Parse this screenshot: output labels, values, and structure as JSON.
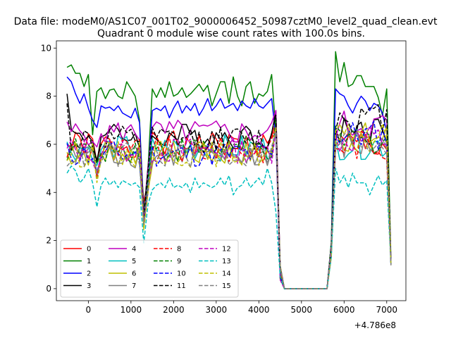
{
  "figure": {
    "suptitle": "Data file: modeM0/AS1C07_001T02_9000006452_50987cztM0_level2_quad_clean.evt"
  },
  "chart_data": {
    "type": "line",
    "title": "Quadrant 0 module wise count rates with 100.0s bins.",
    "xlabel": "",
    "ylabel": "",
    "x_offset_label": "+4.786e8",
    "xlim": [
      -750,
      7450
    ],
    "ylim": [
      -0.5,
      10.3
    ],
    "xticks": [
      0,
      1000,
      2000,
      3000,
      4000,
      5000,
      6000,
      7000
    ],
    "xtick_labels": [
      "0",
      "1000",
      "2000",
      "3000",
      "4000",
      "5000",
      "6000",
      "7000"
    ],
    "yticks": [
      0,
      2,
      4,
      6,
      8,
      10
    ],
    "ytick_labels": [
      "0",
      "2",
      "4",
      "6",
      "8",
      "10"
    ],
    "grid": false,
    "legend_position": "lower-left",
    "legend_columns": 4,
    "x": [
      -500,
      -400,
      -300,
      -200,
      -100,
      0,
      100,
      200,
      300,
      400,
      500,
      600,
      700,
      800,
      900,
      1000,
      1100,
      1200,
      1300,
      1400,
      1500,
      1600,
      1700,
      1800,
      1900,
      2000,
      2100,
      2200,
      2300,
      2400,
      2500,
      2600,
      2700,
      2800,
      2900,
      3000,
      3100,
      3200,
      3300,
      3400,
      3500,
      3600,
      3700,
      3800,
      3900,
      4000,
      4100,
      4200,
      4300,
      4400,
      4500,
      4600,
      4700,
      4800,
      4900,
      5000,
      5100,
      5200,
      5300,
      5400,
      5500,
      5600,
      5700,
      5800,
      5900,
      6000,
      6100,
      6200,
      6300,
      6400,
      6500,
      6600,
      6700,
      6800,
      6900,
      7000,
      7100
    ],
    "series": [
      {
        "name": "0",
        "color": "#ff0000",
        "dash": "solid",
        "base": 6.0,
        "gap": 3.4,
        "mid": 6.0,
        "seed": 1
      },
      {
        "name": "1",
        "color": "#008000",
        "dash": "solid",
        "base": 8.35,
        "gap": 3.2,
        "mid": 8.5,
        "seed": 2,
        "values": [
          9.2,
          9.3,
          8.95,
          8.95,
          8.4,
          8.9,
          6.4,
          8.2,
          8.35,
          7.9,
          8.25,
          8.3,
          8.0,
          7.9,
          8.6,
          8.3,
          8.0,
          7.0,
          3.2,
          5.0,
          8.3,
          7.95,
          8.35,
          7.95,
          8.6,
          8.0,
          8.1,
          8.35,
          7.95,
          8.1,
          8.3,
          8.5,
          8.2,
          8.45,
          7.6,
          8.1,
          8.6,
          8.6,
          7.7,
          8.8,
          8.0,
          7.6,
          8.4,
          8.6,
          7.7,
          8.1,
          8.0,
          8.2,
          8.9,
          6.5,
          0.9,
          0.0,
          0.0,
          0.0,
          0.0,
          0.0,
          0.0,
          0.0,
          0.0,
          0.0,
          0.0,
          0.0,
          1.9,
          9.85,
          8.6,
          9.4,
          8.4,
          8.5,
          8.85,
          8.85,
          8.4,
          8.4,
          8.4,
          7.95,
          7.2,
          8.3,
          1.2
        ]
      },
      {
        "name": "2",
        "color": "#0000ff",
        "dash": "solid",
        "base": 7.35,
        "gap": 3.0,
        "mid": 7.5,
        "seed": 3,
        "values": [
          8.8,
          8.6,
          8.1,
          7.7,
          8.1,
          7.5,
          7.0,
          6.7,
          7.6,
          7.5,
          7.55,
          7.4,
          7.6,
          7.3,
          7.2,
          7.1,
          7.5,
          6.9,
          3.0,
          4.6,
          7.4,
          7.5,
          7.4,
          7.6,
          7.1,
          7.5,
          7.8,
          7.3,
          7.6,
          7.4,
          7.7,
          7.2,
          7.5,
          7.9,
          7.4,
          7.6,
          7.9,
          7.5,
          7.6,
          7.7,
          7.4,
          7.8,
          7.6,
          7.5,
          7.9,
          7.6,
          7.5,
          7.7,
          7.9,
          6.3,
          0.6,
          0.0,
          0.0,
          0.0,
          0.0,
          0.0,
          0.0,
          0.0,
          0.0,
          0.0,
          0.0,
          0.0,
          1.8,
          8.3,
          8.1,
          8.0,
          7.6,
          7.3,
          7.7,
          8.0,
          7.8,
          7.4,
          7.7,
          7.6,
          7.3,
          6.5,
          1.1
        ]
      },
      {
        "name": "3",
        "color": "#000000",
        "dash": "solid",
        "base": 6.35,
        "gap": 2.9,
        "mid": 6.6,
        "seed": 4,
        "first": 8.1
      },
      {
        "name": "4",
        "color": "#bf00bf",
        "dash": "solid",
        "base": 6.5,
        "gap": 3.0,
        "mid": 6.8,
        "seed": 5
      },
      {
        "name": "5",
        "color": "#00bfbf",
        "dash": "solid",
        "base": 5.85,
        "gap": 2.7,
        "mid": 6.0,
        "seed": 6
      },
      {
        "name": "6",
        "color": "#bfbf00",
        "dash": "solid",
        "base": 5.6,
        "gap": 2.6,
        "mid": 6.3,
        "seed": 7
      },
      {
        "name": "7",
        "color": "#808080",
        "dash": "solid",
        "base": 5.55,
        "gap": 2.8,
        "mid": 5.9,
        "seed": 8
      },
      {
        "name": "8",
        "color": "#ff0000",
        "dash": "dashed",
        "base": 5.75,
        "gap": 2.8,
        "mid": 6.0,
        "seed": 9
      },
      {
        "name": "9",
        "color": "#008000",
        "dash": "dashed",
        "base": 5.8,
        "gap": 2.8,
        "mid": 6.2,
        "seed": 10
      },
      {
        "name": "10",
        "color": "#0000ff",
        "dash": "dashed",
        "base": 5.6,
        "gap": 2.6,
        "mid": 6.4,
        "seed": 11
      },
      {
        "name": "11",
        "color": "#000000",
        "dash": "dashed",
        "base": 6.2,
        "gap": 3.0,
        "mid": 7.1,
        "seed": 12,
        "first": 7.7
      },
      {
        "name": "12",
        "color": "#bf00bf",
        "dash": "dashed",
        "base": 5.75,
        "gap": 2.6,
        "mid": 6.2,
        "seed": 13
      },
      {
        "name": "13",
        "color": "#00bfbf",
        "dash": "dashed",
        "base": 4.35,
        "gap": 1.9,
        "mid": 4.3,
        "seed": 14,
        "values": [
          4.8,
          5.1,
          4.9,
          4.4,
          4.6,
          5.0,
          4.4,
          3.4,
          4.3,
          4.6,
          4.3,
          4.5,
          4.2,
          4.5,
          4.4,
          4.3,
          4.4,
          4.2,
          1.9,
          3.5,
          4.1,
          4.3,
          4.4,
          4.2,
          4.6,
          4.2,
          4.3,
          4.2,
          4.4,
          4.0,
          4.6,
          4.2,
          4.4,
          4.3,
          4.2,
          4.3,
          4.6,
          4.3,
          4.7,
          3.9,
          4.2,
          4.3,
          4.6,
          4.2,
          4.4,
          4.6,
          4.3,
          5.0,
          4.4,
          3.2,
          0.5,
          0.0,
          0.0,
          0.0,
          0.0,
          0.0,
          0.0,
          0.0,
          0.0,
          0.0,
          0.0,
          0.0,
          1.3,
          5.0,
          4.4,
          4.7,
          4.2,
          4.8,
          4.4,
          4.4,
          4.4,
          3.9,
          4.3,
          4.7,
          4.3,
          4.5,
          1.0
        ]
      },
      {
        "name": "14",
        "color": "#bfbf00",
        "dash": "dashed",
        "base": 5.6,
        "gap": 2.6,
        "mid": 6.2,
        "seed": 15
      },
      {
        "name": "15",
        "color": "#808080",
        "dash": "dashed",
        "base": 5.55,
        "gap": 2.6,
        "mid": 6.1,
        "seed": 16
      }
    ]
  }
}
